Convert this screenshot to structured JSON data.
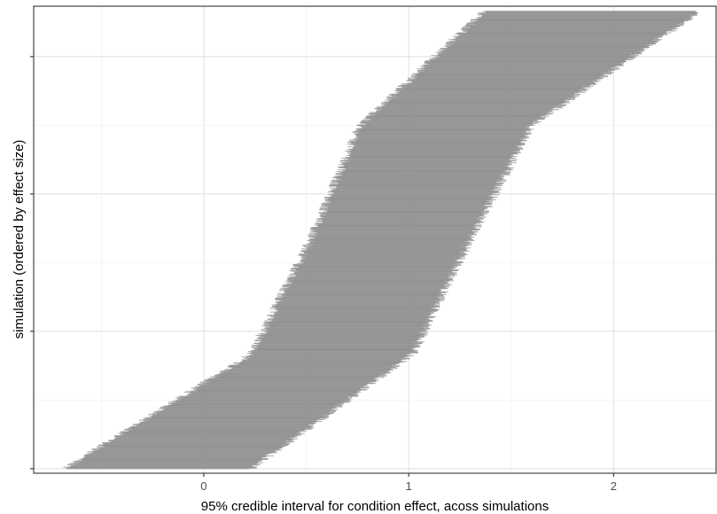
{
  "chart_data": {
    "type": "interval",
    "title": "",
    "xlabel": "95% credible interval for condition effect, acoss simulations",
    "ylabel": "simulation (ordered by effect size)",
    "xlim": [
      -0.83,
      2.5
    ],
    "ylim": [
      -10,
      1010
    ],
    "x_ticks": [
      0,
      1,
      2
    ],
    "x_tick_labels": [
      "0",
      "1",
      "2"
    ],
    "y_ticks": [
      0,
      300,
      600,
      900
    ],
    "y_tick_labels": [
      "",
      "",
      "",
      ""
    ],
    "grid": true,
    "theme": "bw",
    "n_intervals": 1000,
    "interval_color": "#8c8c8c",
    "quantiles": [
      0,
      0.25,
      0.5,
      0.75,
      1
    ],
    "lower_bound_quantiles": [
      -0.68,
      0.23,
      0.52,
      0.76,
      1.37
    ],
    "upper_bound_quantiles": [
      0.23,
      1.02,
      1.3,
      1.6,
      2.42
    ]
  }
}
